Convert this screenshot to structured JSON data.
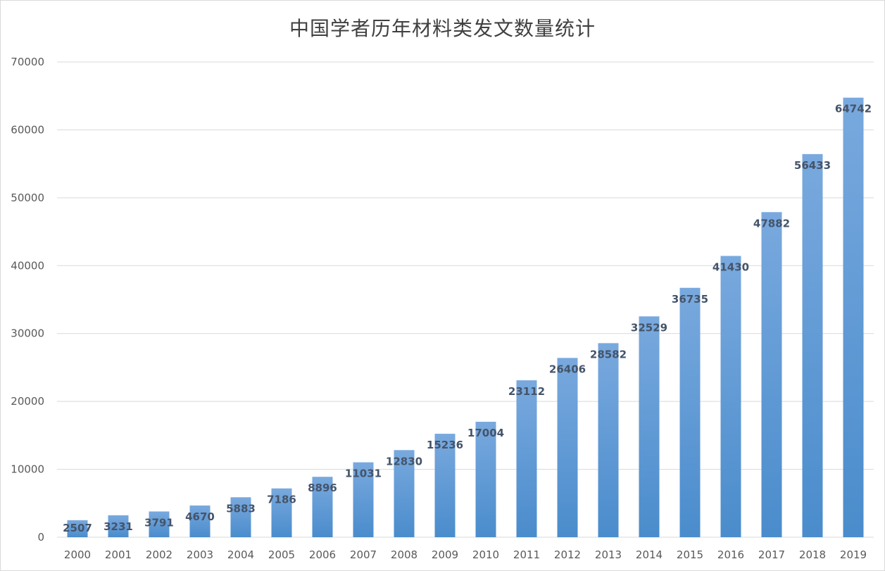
{
  "chart_data": {
    "type": "bar",
    "title": "中国学者历年材料类发文数量统计",
    "xlabel": "",
    "ylabel": "",
    "categories": [
      "2000",
      "2001",
      "2002",
      "2003",
      "2004",
      "2005",
      "2006",
      "2007",
      "2008",
      "2009",
      "2010",
      "2011",
      "2012",
      "2013",
      "2014",
      "2015",
      "2016",
      "2017",
      "2018",
      "2019"
    ],
    "values": [
      2507,
      3231,
      3791,
      4670,
      5883,
      7186,
      8896,
      11031,
      12830,
      15236,
      17004,
      23112,
      26406,
      28582,
      32529,
      36735,
      41430,
      47882,
      56433,
      64742
    ],
    "ylim": [
      0,
      70000
    ],
    "yticks": [
      0,
      10000,
      20000,
      30000,
      40000,
      50000,
      60000,
      70000
    ],
    "grid": true,
    "legend": "none",
    "data_labels": true,
    "colors": {
      "bar_top": "#79a9de",
      "bar_bottom": "#4a8ccc",
      "grid": "#d9d9d9",
      "tick_text": "#595959",
      "label_text": "#44546a",
      "title_text": "#404040"
    }
  }
}
